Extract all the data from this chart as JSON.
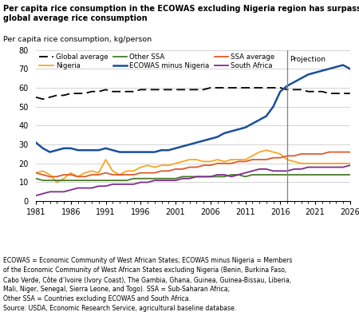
{
  "title_line1": "Per capita rice consumption in the ECOWAS excluding Nigeria region has surpassed",
  "title_line2": "global average rice consumption",
  "ylabel": "Per capita rice consumption, kg/person",
  "years": [
    1981,
    1982,
    1983,
    1984,
    1985,
    1986,
    1987,
    1988,
    1989,
    1990,
    1991,
    1992,
    1993,
    1994,
    1995,
    1996,
    1997,
    1998,
    1999,
    2000,
    2001,
    2002,
    2003,
    2004,
    2005,
    2006,
    2007,
    2008,
    2009,
    2010,
    2011,
    2012,
    2013,
    2014,
    2015,
    2016,
    2017,
    2018,
    2019,
    2020,
    2021,
    2022,
    2023,
    2024,
    2025,
    2026
  ],
  "global_average": [
    55,
    54,
    55,
    56,
    56,
    57,
    57,
    57,
    58,
    58,
    59,
    58,
    58,
    58,
    58,
    59,
    59,
    59,
    59,
    59,
    59,
    59,
    59,
    59,
    59,
    60,
    60,
    60,
    60,
    60,
    60,
    60,
    60,
    60,
    60,
    60,
    59,
    59,
    59,
    58,
    58,
    58,
    57,
    57,
    57,
    57
  ],
  "ecowas_minus_nigeria": [
    31,
    28,
    26,
    27,
    28,
    28,
    27,
    27,
    27,
    27,
    28,
    27,
    26,
    26,
    26,
    26,
    26,
    26,
    27,
    27,
    28,
    29,
    30,
    31,
    32,
    33,
    34,
    36,
    37,
    38,
    39,
    41,
    43,
    45,
    50,
    58,
    61,
    63,
    65,
    67,
    68,
    69,
    70,
    71,
    72,
    70
  ],
  "nigeria": [
    15,
    16,
    14,
    10,
    12,
    15,
    13,
    15,
    16,
    15,
    22,
    16,
    14,
    16,
    16,
    18,
    19,
    18,
    19,
    19,
    20,
    21,
    22,
    22,
    21,
    21,
    22,
    21,
    22,
    22,
    22,
    24,
    26,
    27,
    26,
    25,
    22,
    21,
    20,
    20,
    20,
    20,
    20,
    20,
    20,
    20
  ],
  "ssa_average": [
    15,
    14,
    13,
    13,
    14,
    14,
    13,
    13,
    14,
    14,
    15,
    14,
    14,
    14,
    14,
    15,
    15,
    15,
    16,
    16,
    17,
    17,
    18,
    18,
    19,
    19,
    20,
    20,
    20,
    21,
    21,
    22,
    22,
    22,
    23,
    23,
    24,
    24,
    25,
    25,
    25,
    25,
    26,
    26,
    26,
    26
  ],
  "other_ssa": [
    12,
    11,
    11,
    11,
    11,
    11,
    11,
    11,
    11,
    11,
    11,
    11,
    11,
    11,
    12,
    12,
    12,
    12,
    12,
    12,
    12,
    13,
    13,
    13,
    13,
    13,
    13,
    13,
    14,
    14,
    13,
    14,
    14,
    14,
    14,
    14,
    14,
    14,
    14,
    14,
    14,
    14,
    14,
    14,
    14,
    14
  ],
  "south_africa": [
    3,
    4,
    5,
    5,
    5,
    6,
    7,
    7,
    7,
    8,
    8,
    9,
    9,
    9,
    9,
    10,
    10,
    11,
    11,
    11,
    11,
    12,
    12,
    13,
    13,
    13,
    14,
    14,
    13,
    14,
    15,
    16,
    17,
    17,
    16,
    16,
    16,
    17,
    17,
    18,
    18,
    18,
    18,
    18,
    18,
    19
  ],
  "projection_year": 2017,
  "ylim": [
    0,
    80
  ],
  "yticks": [
    0,
    10,
    20,
    30,
    40,
    50,
    60,
    70,
    80
  ],
  "xticks": [
    1981,
    1986,
    1991,
    1996,
    2001,
    2006,
    2011,
    2016,
    2021,
    2026
  ],
  "xlim": [
    1981,
    2026
  ],
  "colors": {
    "global_average": "#000000",
    "ecowas_minus_nigeria": "#1a4f9c",
    "nigeria": "#f5a623",
    "ssa_average": "#e05a2b",
    "other_ssa": "#4a7a2a",
    "south_africa": "#7b2d8b"
  },
  "footnote": "ECOWAS = Economic Community of West African States; ECOWAS minus Nigeria = Members\nof the Economic Community of West African States excluding Nigeria (Benin, Burkina Faso,\nCabo Verde, Côte d’Ivoire (Ivory Coast), The Gambia, Ghana, Guinea, Guinea-Bissau, Liberia,\nMali, Niger, Senegal, Sierra Leone, and Togo). SSA = Sub-Saharan Africa;\nOther SSA = Countries excluding ECOWAS and South Africa.\nSource: USDA, Economic Research Service, agricultural baseline database."
}
